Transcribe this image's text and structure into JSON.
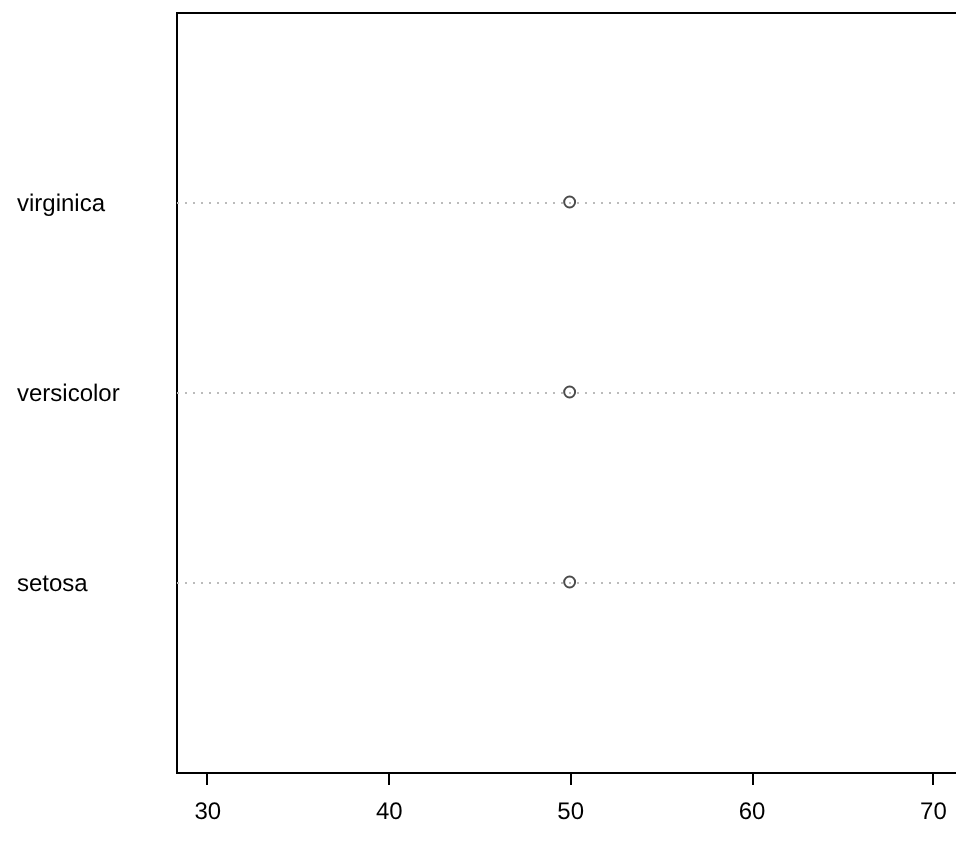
{
  "chart_data": {
    "type": "scatter",
    "orientation": "horizontal",
    "categories": [
      "virginica",
      "versicolor",
      "setosa"
    ],
    "values": [
      50,
      50,
      50
    ],
    "color": "#000000",
    "xlim": [
      28.3,
      71.3
    ],
    "xticks": [
      30,
      40,
      50,
      60,
      70
    ],
    "grid": "y",
    "marker": "circle"
  }
}
